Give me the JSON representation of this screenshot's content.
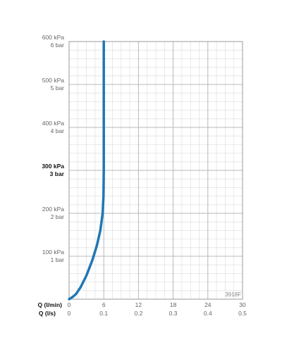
{
  "chart_data": {
    "type": "line",
    "x_axis_title": "Q (l/min)",
    "x2_axis_title": "Q (l/s)",
    "x_ticks": [
      0,
      6,
      12,
      18,
      24,
      30
    ],
    "x2_tick_labels": [
      "0",
      "0.1",
      "0.2",
      "0.3",
      "0.4",
      "0.5"
    ],
    "xlim": [
      0,
      30
    ],
    "ylim": [
      0,
      600
    ],
    "y_ticks": [
      {
        "value": 100,
        "kpa": "100 kPa",
        "bar": "1 bar",
        "bold": false
      },
      {
        "value": 200,
        "kpa": "200 kPa",
        "bar": "2 bar",
        "bold": false
      },
      {
        "value": 300,
        "kpa": "300 kPa",
        "bar": "3 bar",
        "bold": true
      },
      {
        "value": 400,
        "kpa": "400 kPa",
        "bar": "4 bar",
        "bold": false
      },
      {
        "value": 500,
        "kpa": "500 kPa",
        "bar": "5 bar",
        "bold": false
      },
      {
        "value": 600,
        "kpa": "600 kPa",
        "bar": "6 bar",
        "bold": false
      }
    ],
    "grid": true,
    "series": [
      {
        "color": "#1f77b4",
        "x": [
          0,
          0.6,
          1.2,
          2.0,
          3.0,
          4.0,
          4.8,
          5.4,
          5.8,
          5.95,
          6.0,
          6.0,
          6.0
        ],
        "y": [
          0,
          5,
          12,
          28,
          55,
          90,
          125,
          160,
          200,
          240,
          300,
          450,
          600
        ]
      }
    ],
    "annotation": "3918F"
  }
}
